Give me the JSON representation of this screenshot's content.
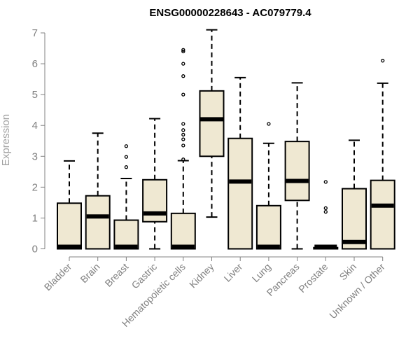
{
  "chart_data": {
    "type": "box",
    "title": "ENSG00000228643 - AC079779.4",
    "xlabel": "",
    "ylabel": "Expression",
    "ylim": [
      0,
      7
    ],
    "yticks": [
      "0",
      "1",
      "2",
      "3",
      "4",
      "5",
      "6",
      "7"
    ],
    "grid": false,
    "legend": "none",
    "box_fill": "#efe8d2",
    "box_stroke": "#000000",
    "axis_color": "#808080",
    "categories": [
      "Bladder",
      "Brain",
      "Breast",
      "Gastric",
      "Hematopoietic cells",
      "Kidney",
      "Liver",
      "Lung",
      "Pancreas",
      "Prostate",
      "Skin",
      "Unknown / Other"
    ],
    "boxes": [
      {
        "whisker_low": 0,
        "q1": 0,
        "median": 0.02,
        "q3": 1.48,
        "whisker_high": 2.85,
        "outliers": []
      },
      {
        "whisker_low": 0,
        "q1": 0,
        "median": 1.05,
        "q3": 1.72,
        "whisker_high": 3.75,
        "outliers": []
      },
      {
        "whisker_low": 0,
        "q1": 0,
        "median": 0.02,
        "q3": 0.93,
        "whisker_high": 2.28,
        "outliers": [
          2.65,
          2.98,
          3.33
        ]
      },
      {
        "whisker_low": 0,
        "q1": 0.88,
        "median": 1.15,
        "q3": 2.24,
        "whisker_high": 4.22,
        "outliers": []
      },
      {
        "whisker_low": 0,
        "q1": 0,
        "median": 0.02,
        "q3": 1.15,
        "whisker_high": 2.86,
        "outliers": [
          2.9,
          3.35,
          3.55,
          3.7,
          3.85,
          4.05,
          5.0,
          5.6,
          6.0,
          6.4,
          6.45
        ]
      },
      {
        "whisker_low": 1.03,
        "q1": 3.0,
        "median": 4.2,
        "q3": 5.12,
        "whisker_high": 7.1,
        "outliers": []
      },
      {
        "whisker_low": 0,
        "q1": 0,
        "median": 2.18,
        "q3": 3.58,
        "whisker_high": 5.55,
        "outliers": []
      },
      {
        "whisker_low": 0,
        "q1": 0,
        "median": 0.02,
        "q3": 1.4,
        "whisker_high": 3.42,
        "outliers": [
          4.05
        ]
      },
      {
        "whisker_low": 0,
        "q1": 1.57,
        "median": 2.2,
        "q3": 3.48,
        "whisker_high": 5.38,
        "outliers": []
      },
      {
        "whisker_low": 0,
        "q1": 0,
        "median": 0.01,
        "q3": 0.04,
        "whisker_high": 0.05,
        "outliers": [
          1.2,
          1.32,
          2.17
        ]
      },
      {
        "whisker_low": 0,
        "q1": 0,
        "median": 0.22,
        "q3": 1.95,
        "whisker_high": 3.52,
        "outliers": []
      },
      {
        "whisker_low": 0,
        "q1": 0,
        "median": 1.4,
        "q3": 2.22,
        "whisker_high": 5.37,
        "outliers": [
          6.1
        ]
      }
    ]
  }
}
